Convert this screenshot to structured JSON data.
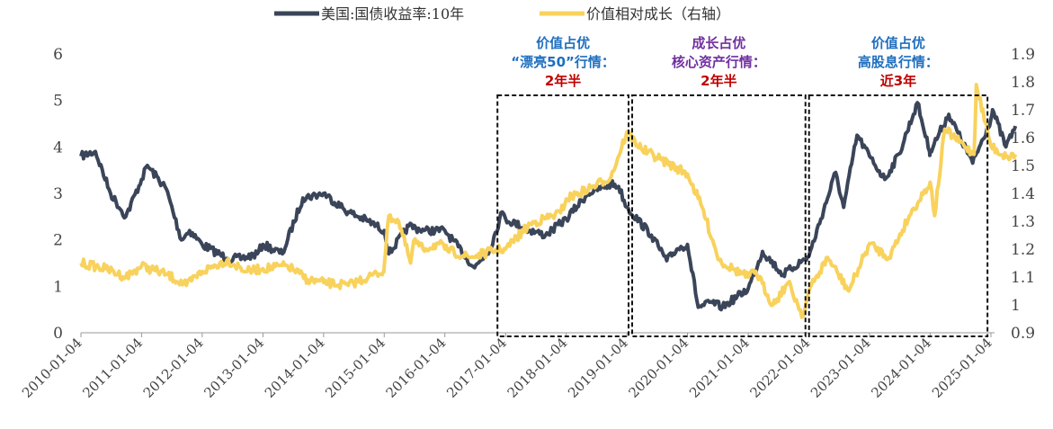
{
  "chart_data": {
    "type": "line",
    "legend": [
      {
        "name": "美国:国债收益率:10年",
        "color": "#3b4559",
        "axis": "left"
      },
      {
        "name": "价值相对成长（右轴）",
        "color": "#f8d25c",
        "axis": "right"
      }
    ],
    "legend_position": "top-center",
    "y_left": {
      "min": 0,
      "max": 6,
      "ticks": [
        "0",
        "1",
        "2",
        "3",
        "4",
        "5",
        "6"
      ]
    },
    "y_right": {
      "min": 0.9,
      "max": 1.9,
      "ticks": [
        "0.9",
        "1",
        "1.1",
        "1.2",
        "1.3",
        "1.4",
        "1.5",
        "1.6",
        "1.7",
        "1.8",
        "1.9"
      ]
    },
    "x_ticks": [
      "2010-01-04",
      "2011-01-04",
      "2012-01-04",
      "2013-01-04",
      "2014-01-04",
      "2015-01-04",
      "2016-01-04",
      "2017-01-04",
      "2018-01-04",
      "2019-01-04",
      "2020-01-04",
      "2021-01-04",
      "2022-01-04",
      "2023-01-04",
      "2024-01-04",
      "2025-01-04"
    ],
    "series": [
      {
        "name": "美国:国债收益率:10年",
        "axis": "left",
        "x": [
          "2010-01-04",
          "2010-04-01",
          "2010-07-01",
          "2010-10-01",
          "2011-01-04",
          "2011-02-08",
          "2011-06-01",
          "2011-09-01",
          "2011-10-20",
          "2012-01-04",
          "2012-06-01",
          "2012-09-01",
          "2012-12-01",
          "2013-01-04",
          "2013-05-01",
          "2013-09-01",
          "2014-01-04",
          "2014-06-01",
          "2014-10-01",
          "2015-01-04",
          "2015-02-01",
          "2015-06-01",
          "2015-09-01",
          "2016-01-04",
          "2016-07-01",
          "2016-10-01",
          "2016-12-15",
          "2017-01-04",
          "2017-06-01",
          "2017-09-01",
          "2018-01-04",
          "2018-05-15",
          "2018-10-01",
          "2018-11-15",
          "2019-01-04",
          "2019-06-01",
          "2019-09-01",
          "2019-11-01",
          "2020-01-04",
          "2020-03-09",
          "2020-06-01",
          "2020-08-01",
          "2021-01-04",
          "2021-03-31",
          "2021-08-01",
          "2022-01-04",
          "2022-06-14",
          "2022-08-01",
          "2022-10-21",
          "2023-01-04",
          "2023-04-06",
          "2023-07-01",
          "2023-10-19",
          "2023-12-31",
          "2024-01-04",
          "2024-04-25",
          "2024-09-16",
          "2025-01-04",
          "2025-01-14",
          "2025-04-04",
          "2025-06-01"
        ],
        "values": [
          3.8,
          3.9,
          3.0,
          2.5,
          3.3,
          3.6,
          3.1,
          2.0,
          2.2,
          1.9,
          1.6,
          1.6,
          1.7,
          1.9,
          1.7,
          2.9,
          3.0,
          2.6,
          2.4,
          2.2,
          1.7,
          2.3,
          2.2,
          2.2,
          1.4,
          1.8,
          2.6,
          2.45,
          2.2,
          2.1,
          2.45,
          3.0,
          3.2,
          3.15,
          2.7,
          2.1,
          1.55,
          1.8,
          1.9,
          0.55,
          0.65,
          0.55,
          0.95,
          1.75,
          1.25,
          1.65,
          3.45,
          2.7,
          4.25,
          3.8,
          3.3,
          3.85,
          4.95,
          3.9,
          3.9,
          4.7,
          3.65,
          4.6,
          4.8,
          4.0,
          4.45
        ]
      },
      {
        "name": "价值相对成长（右轴）",
        "axis": "right",
        "x": [
          "2010-01-04",
          "2010-06-01",
          "2010-10-01",
          "2011-01-04",
          "2011-06-01",
          "2011-10-01",
          "2012-01-04",
          "2012-06-01",
          "2012-10-01",
          "2013-01-04",
          "2013-06-01",
          "2013-10-01",
          "2014-01-04",
          "2014-06-01",
          "2014-10-01",
          "2014-12-31",
          "2015-01-04",
          "2015-02-01",
          "2015-04-01",
          "2015-06-12",
          "2015-07-01",
          "2015-08-26",
          "2015-12-01",
          "2016-01-04",
          "2016-06-01",
          "2016-12-01",
          "2017-01-04",
          "2017-06-01",
          "2017-12-01",
          "2018-01-04",
          "2018-06-01",
          "2018-10-01",
          "2019-01-04",
          "2019-04-01",
          "2019-08-01",
          "2020-01-04",
          "2020-04-01",
          "2020-07-13",
          "2020-10-01",
          "2021-01-04",
          "2021-02-18",
          "2021-06-01",
          "2021-09-01",
          "2021-11-30",
          "2022-01-04",
          "2022-04-27",
          "2022-09-01",
          "2023-01-04",
          "2023-05-01",
          "2023-09-01",
          "2024-01-04",
          "2024-01-31",
          "2024-04-01",
          "2024-09-24",
          "2024-10-08",
          "2025-01-04",
          "2025-04-07",
          "2025-06-01"
        ],
        "values": [
          1.15,
          1.13,
          1.1,
          1.14,
          1.11,
          1.07,
          1.12,
          1.16,
          1.12,
          1.13,
          1.14,
          1.09,
          1.08,
          1.07,
          1.1,
          1.12,
          1.14,
          1.32,
          1.3,
          1.15,
          1.23,
          1.2,
          1.22,
          1.2,
          1.17,
          1.2,
          1.2,
          1.29,
          1.33,
          1.38,
          1.42,
          1.46,
          1.62,
          1.56,
          1.52,
          1.47,
          1.35,
          1.16,
          1.13,
          1.1,
          1.12,
          1.0,
          1.08,
          0.96,
          1.05,
          1.17,
          1.05,
          1.22,
          1.17,
          1.32,
          1.44,
          1.32,
          1.63,
          1.54,
          1.79,
          1.57,
          1.53,
          1.54
        ]
      }
    ],
    "annotations": [
      {
        "lines": [
          "价值占优",
          "“漂亮50”行情：",
          "2年半"
        ],
        "colors": [
          "#1f6fbf",
          "#1f6fbf",
          "#c00000"
        ],
        "start": "2016-11-05",
        "end": "2019-01-25"
      },
      {
        "lines": [
          "成长占优",
          "核心资产行情：",
          "2年半"
        ],
        "colors": [
          "#7030a0",
          "#7030a0",
          "#c00000"
        ],
        "start": "2019-01-25",
        "end": "2021-12-25"
      },
      {
        "lines": [
          "价值占优",
          "高股息行情：",
          "近3年"
        ],
        "colors": [
          "#1f6fbf",
          "#1f6fbf",
          "#c00000"
        ],
        "start": "2021-12-25",
        "end": "2024-12-25"
      }
    ]
  }
}
